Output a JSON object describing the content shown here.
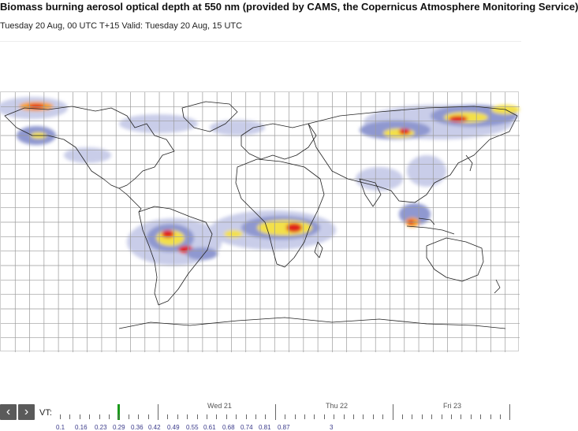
{
  "header": {
    "title": "Biomass burning aerosol optical depth at 550 nm (provided by CAMS, the Copernicus Atmosphere Monitoring Service)",
    "subtitle": "Tuesday 20 Aug, 00 UTC T+15 Valid: Tuesday 20 Aug, 15 UTC"
  },
  "colors": {
    "low": "#c9cde9",
    "mid_low": "#8f98d0",
    "mid": "#f3e04a",
    "high": "#f4a02a",
    "peak": "#e0241b",
    "coast": "#222222",
    "grid": "#9a9a9a",
    "current_time": "#1a9a1a"
  },
  "map": {
    "type": "world",
    "projection": "plate-carree",
    "grid": true
  },
  "controls": {
    "prev_icon": "chevron-left-icon",
    "next_icon": "chevron-right-icon",
    "prev_label": "‹",
    "next_label": "›",
    "vt_label": "VT:",
    "days": [
      "Wed 21",
      "Thu 22",
      "Fri 23"
    ]
  },
  "scale": {
    "values": [
      "0.1",
      "0.16",
      "0.23",
      "0.29",
      "0.36",
      "0.42",
      "0.49",
      "0.55",
      "0.61",
      "0.68",
      "0.74",
      "0.81",
      "0.87",
      "3"
    ]
  }
}
